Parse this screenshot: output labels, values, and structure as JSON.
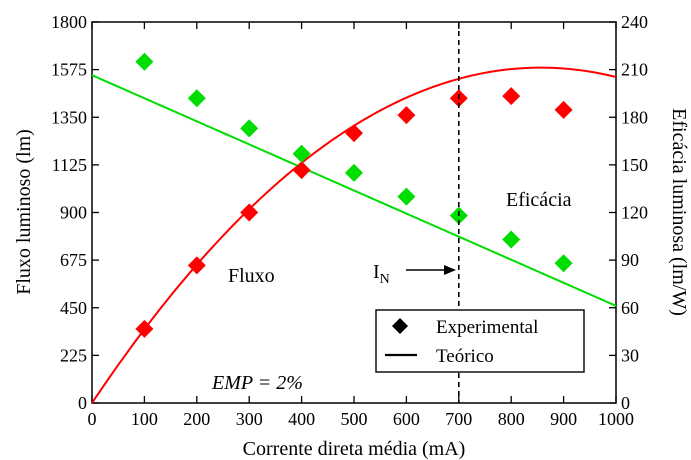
{
  "chart_data": {
    "type": "scatter",
    "xlabel": "Corrente direta média (mA)",
    "ylabel_left": "Fluxo luminoso (lm)",
    "ylabel_right": "Eficácia luminosa (lm/W)",
    "xlim": [
      0,
      1000
    ],
    "ylim_left": [
      0,
      1800
    ],
    "ylim_right": [
      0,
      240
    ],
    "x_ticks": [
      "0",
      "100",
      "200",
      "300",
      "400",
      "500",
      "600",
      "700",
      "800",
      "900",
      "1000"
    ],
    "y_left_ticks": [
      "0",
      "225",
      "450",
      "675",
      "900",
      "1125",
      "1350",
      "1575",
      "1800"
    ],
    "y_right_ticks": [
      "0",
      "30",
      "60",
      "90",
      "120",
      "150",
      "180",
      "210",
      "240"
    ],
    "series": [
      {
        "name": "Fluxo",
        "axis": "left",
        "color": "#ff0000",
        "x": [
          100,
          200,
          300,
          400,
          500,
          600,
          700,
          800,
          900
        ],
        "y": [
          350,
          650,
          900,
          1100,
          1275,
          1360,
          1440,
          1450,
          1385
        ],
        "fit": {
          "type": "quadratic",
          "coeffs": [
            0,
            3.7,
            -0.00216
          ],
          "x_range": [
            0,
            1000
          ]
        }
      },
      {
        "name": "Eficácia",
        "axis": "right",
        "color": "#00dd00",
        "x": [
          100,
          200,
          300,
          400,
          500,
          600,
          700,
          800,
          900
        ],
        "y": [
          215,
          192,
          173,
          157,
          145,
          130,
          118,
          103,
          88
        ],
        "fit": {
          "type": "linear",
          "coeffs": [
            206.5,
            -0.1453
          ],
          "x_range": [
            0,
            1000
          ]
        }
      }
    ],
    "annotations": {
      "vline_x": 700,
      "fluxo_label": "Fluxo",
      "eficacia_label": "Eficácia",
      "in_label_main": "I",
      "in_label_sub": "N",
      "emp_label": "EMP = 2%"
    },
    "legend": {
      "position": "bottom-right",
      "items": [
        {
          "label": "Experimental",
          "marker": "diamond"
        },
        {
          "label": "Teórico",
          "marker": "line"
        }
      ]
    }
  }
}
